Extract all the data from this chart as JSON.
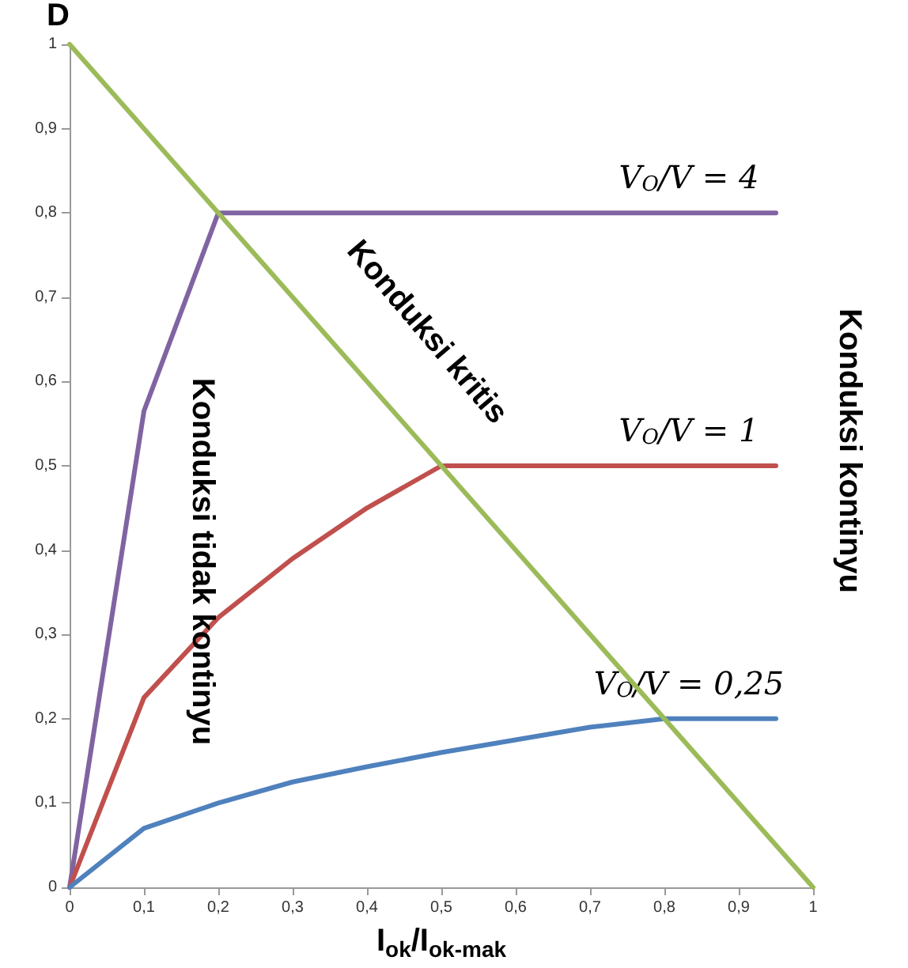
{
  "chart_data": {
    "type": "line",
    "xlabel": "I$_{ok}$/I$_{ok-mak}$",
    "ylabel": "D",
    "xlim": [
      0,
      1
    ],
    "ylim": [
      0,
      1
    ],
    "xticks": [
      0,
      {
        "value": 0.1,
        "label": "0,1"
      },
      {
        "value": 0.2,
        "label": "0,2"
      },
      {
        "value": 0.3,
        "label": "0,3"
      },
      {
        "value": 0.4,
        "label": "0,4"
      },
      {
        "value": 0.5,
        "label": "0,5"
      },
      {
        "value": 0.6,
        "label": "0,6"
      },
      {
        "value": 0.7,
        "label": "0,7"
      },
      {
        "value": 0.8,
        "label": "0,8"
      },
      {
        "value": 0.9,
        "label": "0,9"
      },
      1
    ],
    "yticks": [
      0,
      {
        "value": 0.1,
        "label": "0,1"
      },
      {
        "value": 0.2,
        "label": "0,2"
      },
      {
        "value": 0.3,
        "label": "0,3"
      },
      {
        "value": 0.4,
        "label": "0,4"
      },
      {
        "value": 0.5,
        "label": "0,5"
      },
      {
        "value": 0.6,
        "label": "0,6"
      },
      {
        "value": 0.7,
        "label": "0,7"
      },
      {
        "value": 0.8,
        "label": "0,8"
      },
      {
        "value": 0.9,
        "label": "0,9"
      },
      1
    ],
    "grid": false,
    "marker": "none",
    "series": [
      {
        "name": "V$_{O}$/V = 4",
        "color": "#8064a2",
        "x": [
          0,
          0.1,
          0.2,
          0.95
        ],
        "values": [
          0,
          0.565,
          0.8,
          0.8
        ]
      },
      {
        "name": "V$_{O}$/V = 1",
        "color": "#c0504d",
        "x": [
          0,
          0.1,
          0.2,
          0.3,
          0.4,
          0.5,
          0.95
        ],
        "values": [
          0,
          0.225,
          0.32,
          0.39,
          0.45,
          0.5,
          0.5
        ]
      },
      {
        "name": "V$_{O}$/V = 0,25",
        "color": "#4f81bd",
        "x": [
          0,
          0.1,
          0.2,
          0.3,
          0.4,
          0.5,
          0.6,
          0.7,
          0.8,
          0.95
        ],
        "values": [
          0,
          0.07,
          0.1,
          0.125,
          0.143,
          0.16,
          0.175,
          0.19,
          0.2,
          0.2
        ]
      },
      {
        "color": "#9bbb59",
        "x": [
          0,
          1
        ],
        "values": [
          1,
          0
        ]
      }
    ],
    "annotations": [
      "Konduksi tidak kontinyu",
      "Konduksi kritis",
      "Konduksi kontinyu"
    ]
  }
}
